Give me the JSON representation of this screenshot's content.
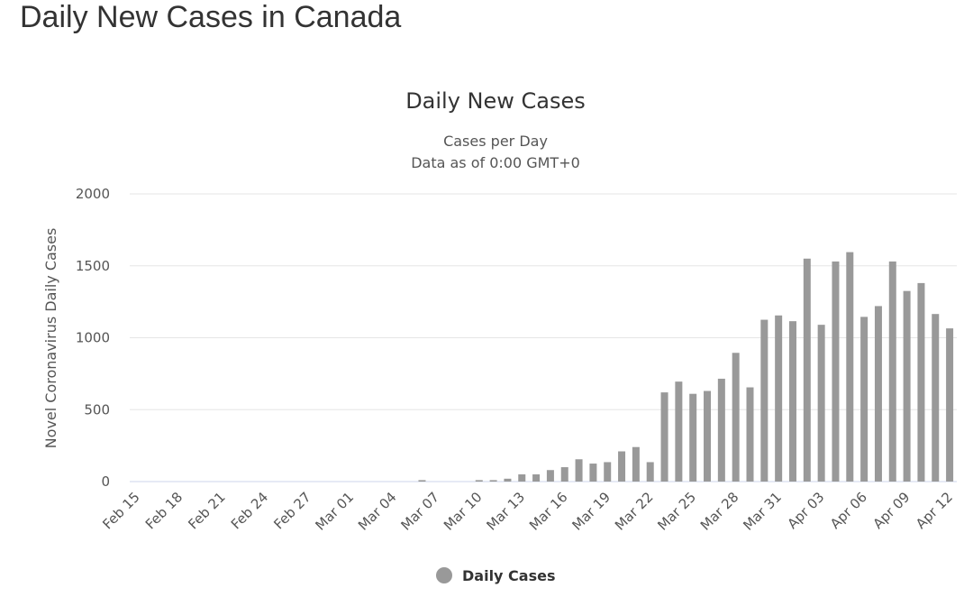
{
  "page_title": "Daily New Cases in Canada",
  "chart_data": {
    "type": "bar",
    "title": "Daily New Cases",
    "subtitle": [
      "Cases per Day",
      "Data as of 0:00 GMT+0"
    ],
    "y_label": "Novel Coronavirus Daily Cases",
    "categories": [
      "Feb 15",
      null,
      null,
      "Feb 18",
      null,
      null,
      "Feb 21",
      null,
      null,
      "Feb 24",
      null,
      null,
      "Feb 27",
      null,
      null,
      "Mar 01",
      null,
      null,
      "Mar 04",
      null,
      null,
      "Mar 07",
      null,
      null,
      "Mar 10",
      null,
      null,
      "Mar 13",
      null,
      null,
      "Mar 16",
      null,
      null,
      "Mar 19",
      null,
      null,
      "Mar 22",
      null,
      null,
      "Mar 25",
      null,
      null,
      "Mar 28",
      null,
      null,
      "Mar 31",
      null,
      null,
      "Apr 03",
      null,
      null,
      "Apr 06",
      null,
      null,
      "Apr 09",
      null,
      null,
      "Apr 12"
    ],
    "series": [
      {
        "name": "Daily Cases",
        "color": "#999999",
        "values": [
          0,
          0,
          0,
          0,
          0,
          0,
          0,
          0,
          0,
          0,
          0,
          0,
          0,
          0,
          0,
          0,
          0,
          0,
          0,
          0,
          10,
          0,
          0,
          0,
          10,
          10,
          20,
          50,
          50,
          80,
          100,
          155,
          125,
          135,
          210,
          240,
          135,
          620,
          695,
          610,
          630,
          715,
          895,
          655,
          1125,
          1155,
          1115,
          1550,
          1090,
          1530,
          1595,
          1145,
          1220,
          1530,
          1325,
          1380,
          1165,
          1065
        ]
      }
    ],
    "ylim": [
      0,
      2000
    ],
    "yticks": [
      0,
      500,
      1000,
      1500,
      2000
    ],
    "grid": true
  }
}
